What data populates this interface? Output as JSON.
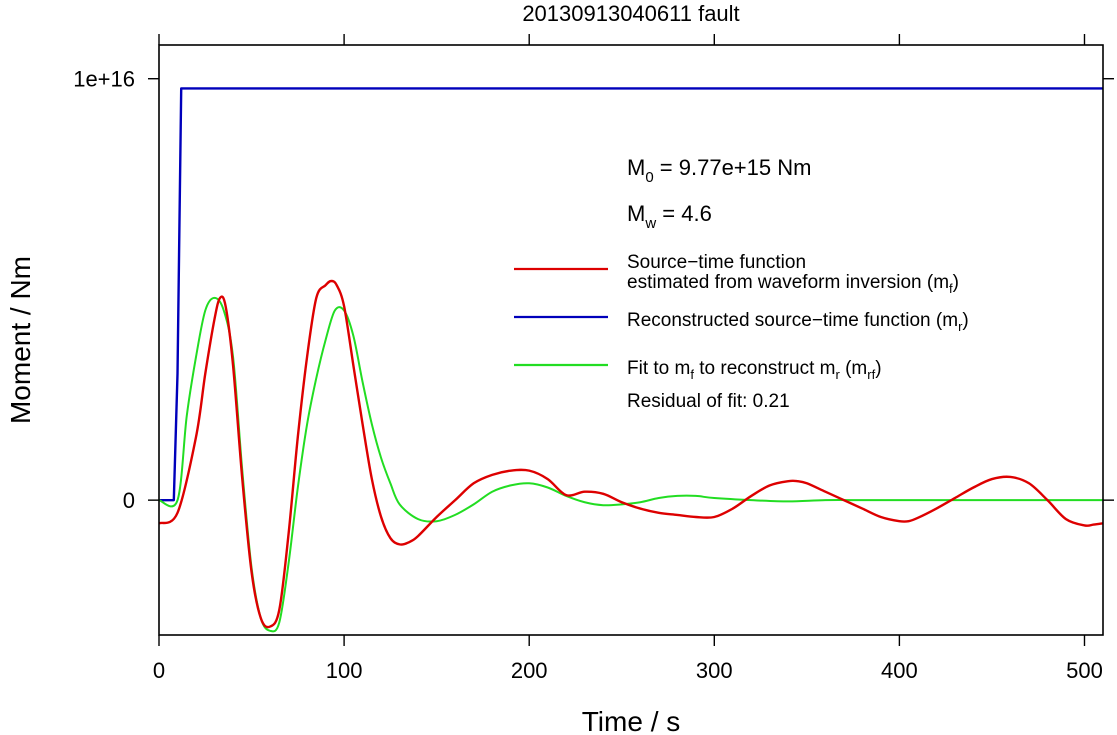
{
  "chart_data": {
    "type": "line",
    "title": "20130913040611 fault",
    "xlabel": "Time / s",
    "ylabel": "Moment / Nm",
    "xlim": [
      0,
      510
    ],
    "ylim": [
      -3200000000000000.0,
      1.08e+16
    ],
    "x_ticks": [
      0,
      100,
      200,
      300,
      400,
      500
    ],
    "x_tick_labels": [
      "0",
      "100",
      "200",
      "300",
      "400",
      "500"
    ],
    "y_ticks": [
      0,
      1e+16
    ],
    "y_tick_labels": [
      "0",
      "1e+16"
    ],
    "grid": false,
    "legend_position": "right",
    "annotations": {
      "m0": {
        "main": "M",
        "sub": "0",
        "rest": " = 9.77e+15 Nm"
      },
      "mw": {
        "main": "M",
        "sub": "w",
        "rest": " = 4.6"
      },
      "residual": "Residual of fit: 0.21"
    },
    "colors": {
      "mf": "#dd0000",
      "mr": "#0000bb",
      "mrf": "#22dd22"
    },
    "legend": [
      {
        "key": "mf",
        "line1": "Source−time function",
        "line2_pre": "estimated from waveform inversion (m",
        "line2_sub": "f",
        "line2_post": ")"
      },
      {
        "key": "mr",
        "line1_pre": "Reconstructed source−time function (m",
        "line1_sub": "r",
        "line1_post": ")"
      },
      {
        "key": "mrf",
        "p1": "Fit to m",
        "s1": "f",
        "p2": " to reconstruct m",
        "s2": "r",
        "p3": " (m",
        "s3": "rf",
        "p4": ")"
      }
    ],
    "series": [
      {
        "key": "mf",
        "x": [
          0,
          10,
          20,
          25,
          30,
          33,
          36,
          40,
          45,
          50,
          55,
          60,
          65,
          70,
          75,
          80,
          85,
          90,
          93,
          96,
          100,
          105,
          110,
          115,
          120,
          125,
          130,
          135,
          140,
          150,
          160,
          170,
          180,
          190,
          200,
          210,
          220,
          230,
          240,
          250,
          260,
          270,
          280,
          290,
          300,
          310,
          320,
          330,
          340,
          345,
          350,
          360,
          370,
          380,
          390,
          400,
          405,
          410,
          420,
          430,
          440,
          450,
          460,
          470,
          480,
          490,
          500,
          505,
          510
        ],
        "y": [
          -550000000000000.0,
          -300000000000000.0,
          1500000000000000.0,
          3000000000000000.0,
          4300000000000000.0,
          4800000000000000.0,
          4600000000000000.0,
          3200000000000000.0,
          500000000000000.0,
          -1700000000000000.0,
          -2800000000000000.0,
          -3000000000000000.0,
          -2600000000000000.0,
          -800000000000000.0,
          1500000000000000.0,
          3400000000000000.0,
          4800000000000000.0,
          5100000000000000.0,
          5200000000000000.0,
          5100000000000000.0,
          4600000000000000.0,
          3200000000000000.0,
          1800000000000000.0,
          500000000000000.0,
          -400000000000000.0,
          -900000000000000.0,
          -1050000000000000.0,
          -1000000000000000.0,
          -850000000000000.0,
          -400000000000000.0,
          0.0,
          400000000000000.0,
          600000000000000.0,
          700000000000000.0,
          700000000000000.0,
          500000000000000.0,
          120000000000000.0,
          200000000000000.0,
          150000000000000.0,
          -50000000000000.0,
          -200000000000000.0,
          -300000000000000.0,
          -350000000000000.0,
          -400000000000000.0,
          -400000000000000.0,
          -200000000000000.0,
          100000000000000.0,
          350000000000000.0,
          450000000000000.0,
          450000000000000.0,
          400000000000000.0,
          200000000000000.0,
          0.0,
          -200000000000000.0,
          -400000000000000.0,
          -500000000000000.0,
          -500000000000000.0,
          -420000000000000.0,
          -200000000000000.0,
          50000000000000.0,
          300000000000000.0,
          500000000000000.0,
          550000000000000.0,
          400000000000000.0,
          0.0,
          -450000000000000.0,
          -600000000000000.0,
          -580000000000000.0,
          -550000000000000.0
        ]
      },
      {
        "key": "mr",
        "x": [
          0,
          8,
          10,
          12,
          510
        ],
        "y": [
          0,
          0,
          3000000000000000.0,
          9770000000000000.0,
          9770000000000000.0
        ]
      },
      {
        "key": "mrf",
        "x": [
          0,
          10,
          15,
          20,
          25,
          30,
          35,
          40,
          45,
          50,
          55,
          60,
          65,
          70,
          75,
          80,
          85,
          90,
          95,
          100,
          105,
          110,
          115,
          120,
          125,
          130,
          140,
          150,
          160,
          170,
          180,
          190,
          200,
          210,
          220,
          230,
          240,
          250,
          260,
          270,
          280,
          290,
          300,
          320,
          340,
          360,
          380,
          400,
          440,
          480,
          510
        ],
        "y": [
          0,
          0,
          2000000000000000.0,
          3400000000000000.0,
          4500000000000000.0,
          4800000000000000.0,
          4500000000000000.0,
          3400000000000000.0,
          700000000000000.0,
          -1600000000000000.0,
          -2800000000000000.0,
          -3100000000000000.0,
          -2900000000000000.0,
          -1500000000000000.0,
          300000000000000.0,
          1800000000000000.0,
          2900000000000000.0,
          3800000000000000.0,
          4500000000000000.0,
          4500000000000000.0,
          3900000000000000.0,
          2800000000000000.0,
          1800000000000000.0,
          1000000000000000.0,
          400000000000000.0,
          -100000000000000.0,
          -450000000000000.0,
          -500000000000000.0,
          -350000000000000.0,
          -100000000000000.0,
          200000000000000.0,
          350000000000000.0,
          400000000000000.0,
          300000000000000.0,
          100000000000000.0,
          -50000000000000.0,
          -120000000000000.0,
          -100000000000000.0,
          -50000000000000.0,
          50000000000000.0,
          100000000000000.0,
          100000000000000.0,
          50000000000000.0,
          0.0,
          -30000000000000.0,
          0.0,
          0.0,
          0.0,
          0.0,
          0.0,
          0.0
        ]
      }
    ]
  }
}
